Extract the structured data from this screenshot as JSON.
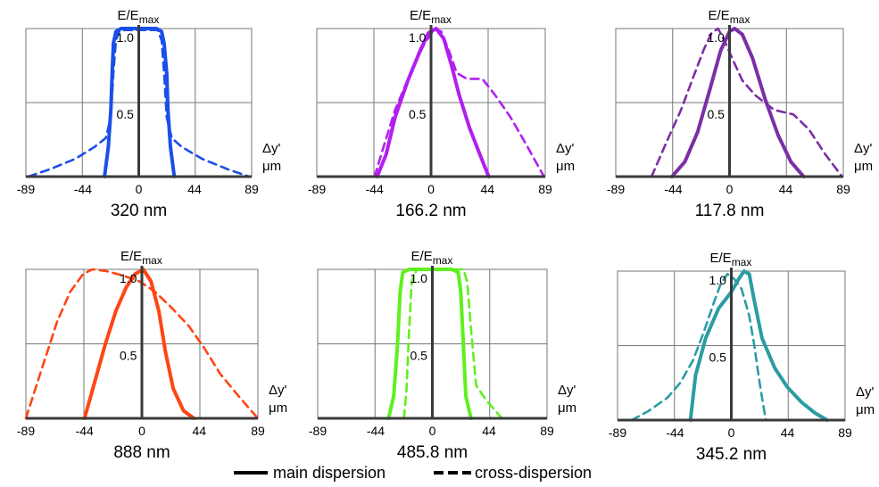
{
  "chart_data": [
    {
      "type": "line",
      "title": "320 nm",
      "ylabel_main": "E/E",
      "ylabel_sub": "max",
      "xlabel_line1": "Δy'",
      "xlabel_line2": "μm",
      "xlim": [
        -89,
        89
      ],
      "ylim": [
        0,
        1
      ],
      "xticks": [
        -89,
        -44,
        0,
        44,
        89
      ],
      "yticks": [
        {
          "value": 0.5,
          "label": "0.5"
        },
        {
          "value": 1.0,
          "label": "1.0"
        }
      ],
      "grid": true,
      "color": "#1a4fe8",
      "series": [
        {
          "style": "solid",
          "points": [
            [
              -27,
              0
            ],
            [
              -24,
              0.2
            ],
            [
              -22,
              0.45
            ],
            [
              -21,
              0.7
            ],
            [
              -20,
              0.9
            ],
            [
              -18,
              0.98
            ],
            [
              -14,
              1.0
            ],
            [
              14,
              1.0
            ],
            [
              18,
              0.98
            ],
            [
              20,
              0.9
            ],
            [
              22,
              0.7
            ],
            [
              23,
              0.45
            ],
            [
              25,
              0.2
            ],
            [
              28,
              0
            ]
          ]
        },
        {
          "style": "dashed",
          "points": [
            [
              -87,
              0
            ],
            [
              -70,
              0.05
            ],
            [
              -50,
              0.12
            ],
            [
              -35,
              0.2
            ],
            [
              -26,
              0.26
            ],
            [
              -22,
              0.4
            ],
            [
              -20,
              0.7
            ],
            [
              -18,
              0.92
            ],
            [
              -15,
              0.99
            ],
            [
              15,
              0.99
            ],
            [
              18,
              0.92
            ],
            [
              20,
              0.7
            ],
            [
              22,
              0.4
            ],
            [
              26,
              0.26
            ],
            [
              34,
              0.2
            ],
            [
              50,
              0.12
            ],
            [
              70,
              0.05
            ],
            [
              87,
              0
            ]
          ]
        }
      ]
    },
    {
      "type": "line",
      "title": "166.2 nm",
      "ylabel_main": "E/E",
      "ylabel_sub": "max",
      "xlabel_line1": "Δy'",
      "xlabel_line2": "μm",
      "xlim": [
        -89,
        89
      ],
      "ylim": [
        0,
        1
      ],
      "xticks": [
        -89,
        -44,
        0,
        44,
        89
      ],
      "yticks": [
        {
          "value": 0.5,
          "label": "0.5"
        },
        {
          "value": 1.0,
          "label": "1.0"
        }
      ],
      "grid": true,
      "color": "#b21ff0",
      "series": [
        {
          "style": "solid",
          "points": [
            [
              -42,
              0
            ],
            [
              -35,
              0.15
            ],
            [
              -28,
              0.4
            ],
            [
              -18,
              0.65
            ],
            [
              -8,
              0.86
            ],
            [
              -2,
              0.97
            ],
            [
              4,
              1.0
            ],
            [
              10,
              0.93
            ],
            [
              16,
              0.75
            ],
            [
              22,
              0.55
            ],
            [
              30,
              0.33
            ],
            [
              38,
              0.15
            ],
            [
              45,
              0
            ]
          ]
        },
        {
          "style": "dashed",
          "points": [
            [
              -44,
              0
            ],
            [
              -37,
              0.2
            ],
            [
              -28,
              0.45
            ],
            [
              -15,
              0.72
            ],
            [
              -5,
              0.9
            ],
            [
              3,
              1.0
            ],
            [
              8,
              0.98
            ],
            [
              14,
              0.85
            ],
            [
              20,
              0.7
            ],
            [
              28,
              0.66
            ],
            [
              40,
              0.66
            ],
            [
              50,
              0.55
            ],
            [
              62,
              0.4
            ],
            [
              74,
              0.22
            ],
            [
              88,
              0
            ]
          ]
        }
      ]
    },
    {
      "type": "line",
      "title": "117.8 nm",
      "ylabel_main": "E/E",
      "ylabel_sub": "max",
      "xlabel_line1": "Δy'",
      "xlabel_line2": "μm",
      "xlim": [
        -89,
        89
      ],
      "ylim": [
        0,
        1
      ],
      "xticks": [
        -89,
        -44,
        0,
        44,
        89
      ],
      "yticks": [
        {
          "value": 0.5,
          "label": "0.5"
        },
        {
          "value": 1.0,
          "label": "1.0"
        }
      ],
      "grid": true,
      "color": "#7b2fa6",
      "series": [
        {
          "style": "solid",
          "points": [
            [
              -45,
              0
            ],
            [
              -35,
              0.1
            ],
            [
              -25,
              0.3
            ],
            [
              -15,
              0.6
            ],
            [
              -7,
              0.85
            ],
            [
              0,
              0.98
            ],
            [
              4,
              1.0
            ],
            [
              10,
              0.96
            ],
            [
              18,
              0.8
            ],
            [
              28,
              0.52
            ],
            [
              38,
              0.28
            ],
            [
              48,
              0.1
            ],
            [
              58,
              0
            ]
          ]
        },
        {
          "style": "dashed",
          "points": [
            [
              -61,
              0
            ],
            [
              -50,
              0.22
            ],
            [
              -38,
              0.45
            ],
            [
              -28,
              0.68
            ],
            [
              -20,
              0.86
            ],
            [
              -14,
              0.97
            ],
            [
              -9,
              1.0
            ],
            [
              -4,
              0.92
            ],
            [
              2,
              0.8
            ],
            [
              10,
              0.65
            ],
            [
              20,
              0.55
            ],
            [
              35,
              0.45
            ],
            [
              50,
              0.42
            ],
            [
              62,
              0.32
            ],
            [
              75,
              0.15
            ],
            [
              88,
              0
            ]
          ]
        }
      ]
    },
    {
      "type": "line",
      "title": "888 nm",
      "ylabel_main": "E/E",
      "ylabel_sub": "max",
      "xlabel_line1": "Δy'",
      "xlabel_line2": "μm",
      "xlim": [
        -89,
        89
      ],
      "ylim": [
        0,
        1
      ],
      "xticks": [
        -89,
        -44,
        0,
        44,
        89
      ],
      "yticks": [
        {
          "value": 0.5,
          "label": "0.5"
        },
        {
          "value": 1.0,
          "label": "1.0"
        }
      ],
      "grid": true,
      "color": "#ff4513",
      "series": [
        {
          "style": "solid",
          "points": [
            [
              -44,
              0
            ],
            [
              -36,
              0.25
            ],
            [
              -28,
              0.5
            ],
            [
              -20,
              0.72
            ],
            [
              -12,
              0.88
            ],
            [
              -5,
              0.97
            ],
            [
              1,
              1.0
            ],
            [
              7,
              0.92
            ],
            [
              13,
              0.72
            ],
            [
              18,
              0.45
            ],
            [
              24,
              0.2
            ],
            [
              32,
              0.05
            ],
            [
              40,
              0
            ]
          ]
        },
        {
          "style": "dashed",
          "points": [
            [
              -89,
              0
            ],
            [
              -78,
              0.3
            ],
            [
              -65,
              0.65
            ],
            [
              -55,
              0.85
            ],
            [
              -45,
              0.97
            ],
            [
              -38,
              1.0
            ],
            [
              -28,
              0.99
            ],
            [
              -15,
              0.96
            ],
            [
              -2,
              0.92
            ],
            [
              10,
              0.85
            ],
            [
              22,
              0.75
            ],
            [
              36,
              0.62
            ],
            [
              48,
              0.47
            ],
            [
              60,
              0.3
            ],
            [
              75,
              0.14
            ],
            [
              89,
              0
            ]
          ]
        }
      ]
    },
    {
      "type": "line",
      "title": "485.8 nm",
      "ylabel_main": "E/E",
      "ylabel_sub": "max",
      "xlabel_line1": "Δy'",
      "xlabel_line2": "μm",
      "xlim": [
        -89,
        89
      ],
      "ylim": [
        0,
        1
      ],
      "xticks": [
        -89,
        -44,
        0,
        44,
        89
      ],
      "yticks": [
        {
          "value": 0.5,
          "label": "0.5"
        },
        {
          "value": 1.0,
          "label": "1.0"
        }
      ],
      "grid": true,
      "color": "#5ff01e",
      "series": [
        {
          "style": "solid",
          "points": [
            [
              -34,
              0
            ],
            [
              -30,
              0.15
            ],
            [
              -27,
              0.5
            ],
            [
              -25,
              0.85
            ],
            [
              -23,
              0.98
            ],
            [
              -18,
              1.0
            ],
            [
              15,
              1.0
            ],
            [
              20,
              0.98
            ],
            [
              22,
              0.85
            ],
            [
              24,
              0.5
            ],
            [
              26,
              0.15
            ],
            [
              30,
              0
            ]
          ]
        },
        {
          "style": "dashed",
          "points": [
            [
              -22,
              0
            ],
            [
              -20,
              0.2
            ],
            [
              -18,
              0.6
            ],
            [
              -16,
              0.92
            ],
            [
              -12,
              1.0
            ],
            [
              24,
              1.0
            ],
            [
              27,
              0.92
            ],
            [
              30,
              0.6
            ],
            [
              34,
              0.22
            ],
            [
              42,
              0.12
            ],
            [
              52,
              0.02
            ],
            [
              54,
              0
            ]
          ]
        }
      ]
    },
    {
      "type": "line",
      "title": "345.2 nm",
      "ylabel_main": "E/E",
      "ylabel_sub": "max",
      "xlabel_line1": "Δy'",
      "xlabel_line2": "μm",
      "xlim": [
        -89,
        89
      ],
      "ylim": [
        0,
        1
      ],
      "xticks": [
        -89,
        -44,
        0,
        44,
        89
      ],
      "yticks": [
        {
          "value": 0.5,
          "label": "0.5"
        },
        {
          "value": 1.0,
          "label": "1.0"
        }
      ],
      "grid": true,
      "color": "#2b9ca3",
      "series": [
        {
          "style": "solid",
          "points": [
            [
              -32,
              0
            ],
            [
              -28,
              0.3
            ],
            [
              -20,
              0.55
            ],
            [
              -10,
              0.75
            ],
            [
              0,
              0.86
            ],
            [
              6,
              0.95
            ],
            [
              10,
              1.0
            ],
            [
              14,
              0.98
            ],
            [
              18,
              0.8
            ],
            [
              24,
              0.55
            ],
            [
              34,
              0.35
            ],
            [
              44,
              0.22
            ],
            [
              55,
              0.12
            ],
            [
              65,
              0.05
            ],
            [
              75,
              0
            ]
          ]
        },
        {
          "style": "dashed",
          "points": [
            [
              -78,
              0
            ],
            [
              -65,
              0.06
            ],
            [
              -50,
              0.15
            ],
            [
              -40,
              0.25
            ],
            [
              -30,
              0.4
            ],
            [
              -22,
              0.58
            ],
            [
              -14,
              0.78
            ],
            [
              -8,
              0.92
            ],
            [
              -3,
              0.98
            ],
            [
              2,
              0.95
            ],
            [
              8,
              0.88
            ],
            [
              14,
              0.7
            ],
            [
              18,
              0.5
            ],
            [
              22,
              0.26
            ],
            [
              25,
              0.1
            ],
            [
              27,
              0
            ]
          ]
        }
      ]
    }
  ],
  "legend": {
    "placement": "bottom-center",
    "entries": [
      {
        "style": "solid",
        "label": "main dispersion"
      },
      {
        "style": "dashed",
        "label": "cross-dispersion"
      }
    ]
  }
}
